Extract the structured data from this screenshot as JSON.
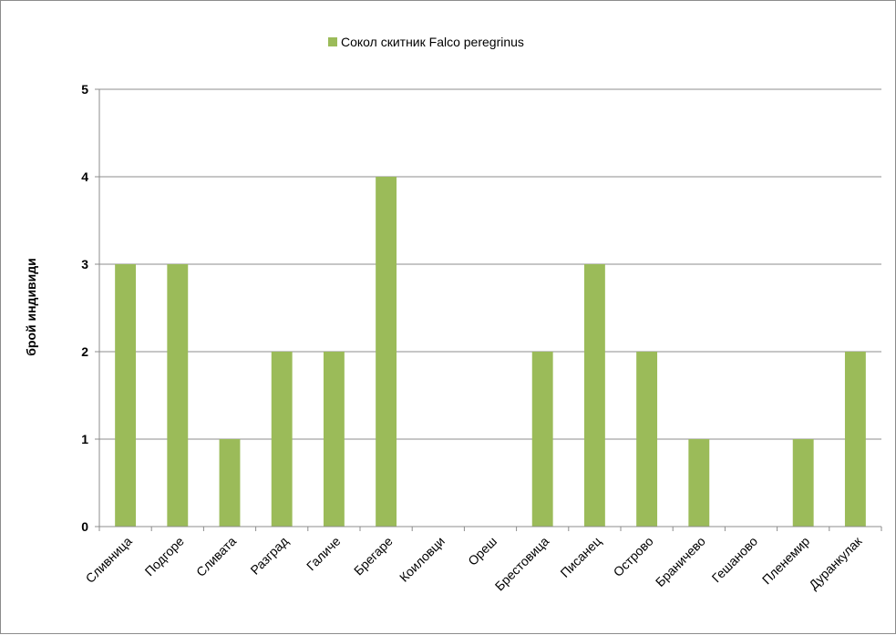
{
  "chart_data": {
    "type": "bar",
    "categories": [
      "Сливница",
      "Подгоре",
      "Сливата",
      "Разград",
      "Галиче",
      "Брегаре",
      "Коиловци",
      "Ореш",
      "Брестовица",
      "Писанец",
      "Острово",
      "Браничево",
      "Гешаново",
      "Пленемир",
      "Дуранкулак"
    ],
    "series": [
      {
        "name": "Сокол скитник Falco peregrinus",
        "values": [
          3,
          3,
          1,
          2,
          2,
          4,
          0,
          0,
          2,
          3,
          2,
          1,
          0,
          1,
          2
        ],
        "color": "#9bbb59"
      }
    ],
    "ylabel": "брой индивиди",
    "ylim": [
      0,
      5
    ],
    "yticks": [
      "0",
      "1",
      "2",
      "3",
      "4",
      "5"
    ],
    "grid": true,
    "legend_position": "top"
  },
  "colors": {
    "bar": "#9bbb59",
    "gridline": "#8c8c8c",
    "axis": "#8c8c8c"
  }
}
